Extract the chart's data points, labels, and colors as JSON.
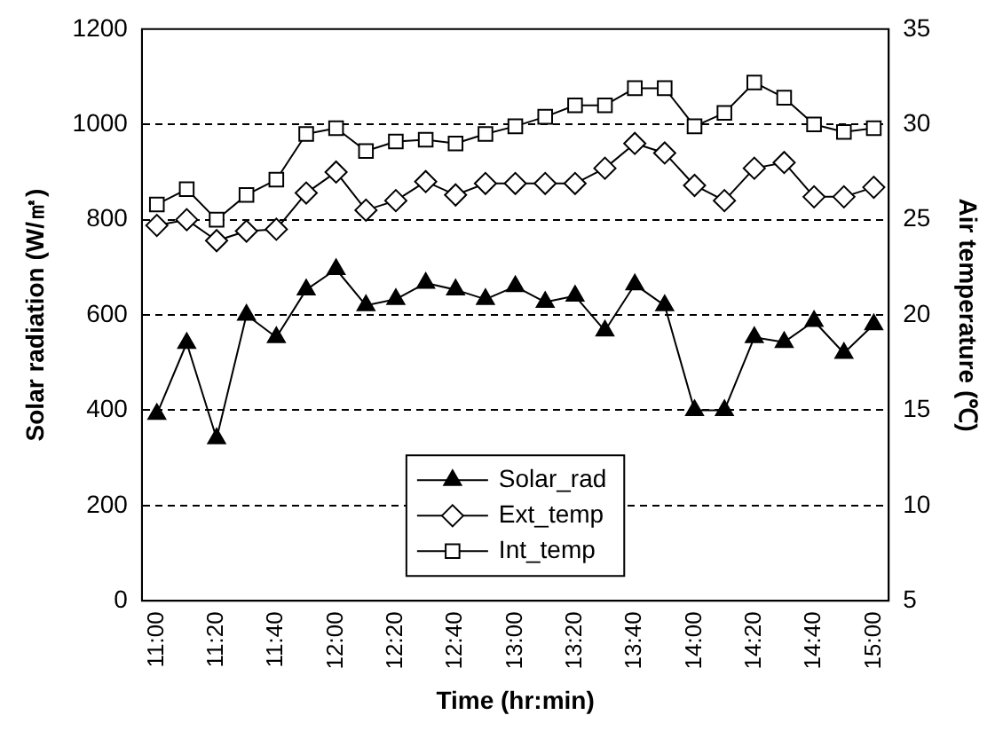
{
  "chart_data": {
    "type": "line",
    "xlabel": "Time (hr:min)",
    "ylabel": "Solar radiation (W/㎡)",
    "y2label": "Air temperature (℃)",
    "categories": [
      "11:00",
      null,
      "11:20",
      null,
      "11:40",
      null,
      "12:00",
      null,
      "12:20",
      null,
      "12:40",
      null,
      "13:00",
      null,
      "13:20",
      null,
      "13:40",
      null,
      "14:00",
      null,
      "14:20",
      null,
      "14:40",
      null,
      "15:00"
    ],
    "series": [
      {
        "name": "Solar_rad",
        "color": "#000000",
        "marker": "triangle",
        "values": [
          392,
          541,
          341,
          600,
          553,
          653,
          696,
          620,
          633,
          667,
          653,
          633,
          660,
          627,
          640,
          567,
          664,
          620,
          400,
          400,
          553,
          543,
          587,
          520,
          580
        ]
      },
      {
        "name": "Ext_temp",
        "color": "#000000",
        "marker": "diamond",
        "axis": "y2",
        "values": [
          24.7,
          25,
          23.9,
          24.4,
          24.5,
          26.4,
          27.5,
          25.5,
          26,
          27,
          26.3,
          26.9,
          26.9,
          26.9,
          26.9,
          27.7,
          29,
          28.5,
          26.8,
          26,
          27.7,
          28,
          26.2,
          26.2,
          26.7
        ]
      },
      {
        "name": "Int_temp",
        "color": "#000000",
        "marker": "square",
        "axis": "y2",
        "values": [
          25.8,
          26.6,
          25,
          26.3,
          27.1,
          29.5,
          29.8,
          28.6,
          29.1,
          29.2,
          29,
          29.5,
          29.9,
          30.4,
          31,
          31,
          31.9,
          31.9,
          29.9,
          30.6,
          32.2,
          31.4,
          30,
          29.6,
          29.8
        ]
      }
    ],
    "ylim": [
      0,
      1200
    ],
    "yticks": [
      0,
      200,
      400,
      600,
      800,
      1000,
      1200
    ],
    "y2lim": [
      5,
      35
    ],
    "y2ticks": [
      5,
      10,
      15,
      20,
      25,
      30,
      35
    ],
    "grid": "y",
    "legend": "bottom",
    "line_style": "solid"
  }
}
